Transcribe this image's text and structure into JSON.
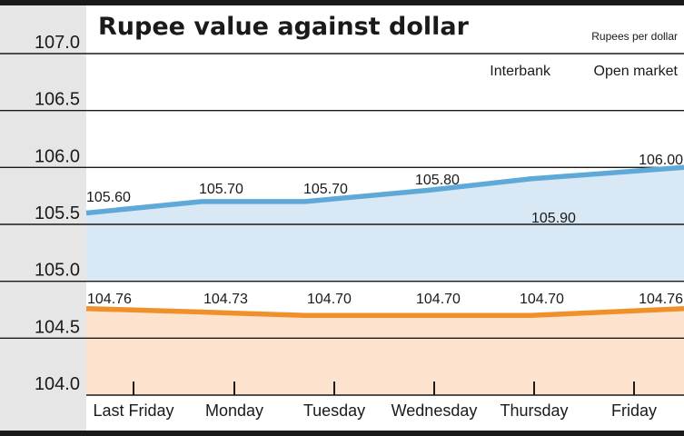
{
  "chart_data": {
    "type": "area",
    "title": "Rupee value against dollar",
    "unit_label": "Rupees per dollar",
    "categories": [
      "Last Friday",
      "Monday",
      "Tuesday",
      "Wednesday",
      "Thursday",
      "Friday"
    ],
    "series": [
      {
        "name": "Interbank",
        "values": [
          104.76,
          104.73,
          104.7,
          104.7,
          104.7,
          104.76
        ],
        "labels": [
          "104.76",
          "104.73",
          "104.70",
          "104.70",
          "104.70",
          "104.76"
        ],
        "line_color": "#f0902a",
        "fill_color": "#fde3cd"
      },
      {
        "name": "Open market",
        "values": [
          105.6,
          105.7,
          105.7,
          105.8,
          105.9,
          106.0
        ],
        "labels": [
          "105.60",
          "105.70",
          "105.70",
          "105.80",
          "105.90",
          "106.00"
        ],
        "line_color": "#5ea9d8",
        "fill_color": "#d8e8f5"
      }
    ],
    "ylim": [
      104.0,
      107.0
    ],
    "yticks": [
      "104.0",
      "104.5",
      "105.0",
      "105.5",
      "106.0",
      "106.5",
      "107.0"
    ],
    "grid": true,
    "legend_position": "top-right"
  }
}
